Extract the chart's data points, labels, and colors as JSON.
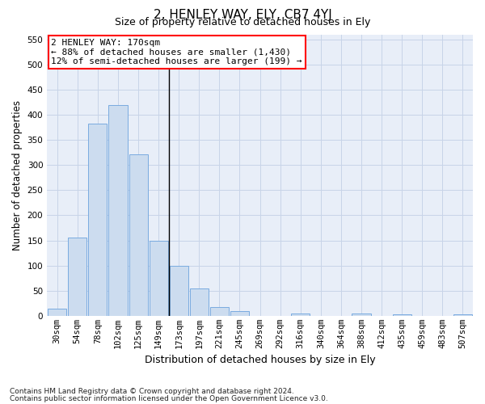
{
  "title": "2, HENLEY WAY, ELY, CB7 4YJ",
  "subtitle": "Size of property relative to detached houses in Ely",
  "xlabel": "Distribution of detached houses by size in Ely",
  "ylabel": "Number of detached properties",
  "footnote1": "Contains HM Land Registry data © Crown copyright and database right 2024.",
  "footnote2": "Contains public sector information licensed under the Open Government Licence v3.0.",
  "annotation_line1": "2 HENLEY WAY: 170sqm",
  "annotation_line2": "← 88% of detached houses are smaller (1,430)",
  "annotation_line3": "12% of semi-detached houses are larger (199) →",
  "bar_color": "#ccdcef",
  "bar_edge_color": "#7aabe0",
  "categories": [
    "30sqm",
    "54sqm",
    "78sqm",
    "102sqm",
    "125sqm",
    "149sqm",
    "173sqm",
    "197sqm",
    "221sqm",
    "245sqm",
    "269sqm",
    "292sqm",
    "316sqm",
    "340sqm",
    "364sqm",
    "388sqm",
    "412sqm",
    "435sqm",
    "459sqm",
    "483sqm",
    "507sqm"
  ],
  "values": [
    15,
    155,
    383,
    420,
    322,
    150,
    100,
    55,
    18,
    10,
    0,
    0,
    5,
    0,
    0,
    4,
    0,
    3,
    0,
    0,
    3
  ],
  "vline_index": 5.5,
  "ylim": [
    0,
    560
  ],
  "yticks": [
    0,
    50,
    100,
    150,
    200,
    250,
    300,
    350,
    400,
    450,
    500,
    550
  ],
  "grid_color": "#c8d4e8",
  "background_color": "#e8eef8",
  "title_fontsize": 11,
  "subtitle_fontsize": 9,
  "tick_fontsize": 7.5,
  "ylabel_fontsize": 8.5,
  "xlabel_fontsize": 9,
  "footnote_fontsize": 6.5,
  "annotation_fontsize": 8
}
